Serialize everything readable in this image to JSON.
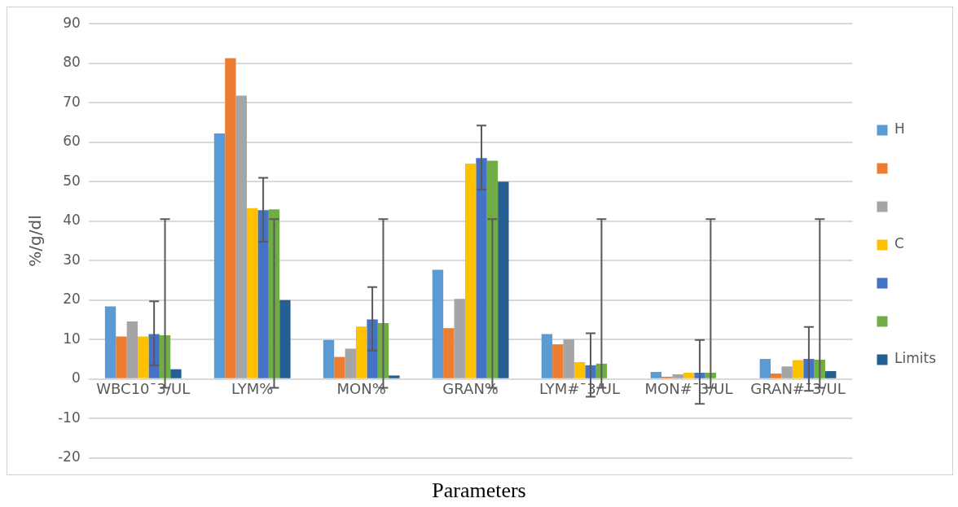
{
  "chart_data": {
    "type": "bar",
    "xlabel": "Parameters",
    "ylabel": "%/g/dl",
    "categories": [
      "WBC10¯3/UL",
      "LYM%",
      "MON%",
      "GRAN%",
      "LYM#¯3/UL",
      "MON#¯3/UL",
      "GRAN#¯3/UL"
    ],
    "series": [
      {
        "name": "H",
        "color": "#5b9bd5",
        "values": [
          18.4,
          62.2,
          9.9,
          27.7,
          11.4,
          1.8,
          5.1
        ]
      },
      {
        "color": "#ed7d31",
        "values": [
          10.8,
          81.3,
          5.6,
          12.9,
          8.8,
          0.6,
          1.4
        ]
      },
      {
        "color": "#a5a5a5",
        "values": [
          14.6,
          71.8,
          7.7,
          20.3,
          10.1,
          1.2,
          3.2
        ]
      },
      {
        "name": "C",
        "color": "#ffc000",
        "values": [
          10.8,
          43.3,
          13.3,
          54.6,
          4.3,
          1.6,
          4.8
        ]
      },
      {
        "color": "#4472c4",
        "values": [
          11.4,
          42.8,
          15.1,
          56.0,
          3.5,
          1.6,
          5.1
        ],
        "errors": [
          [
            3.5,
            19.7
          ],
          [
            34.8,
            51
          ],
          [
            7.2,
            23.3
          ],
          [
            48,
            64.2
          ],
          [
            -4.5,
            11.6
          ],
          [
            -6.3,
            9.9
          ],
          [
            -3,
            13.2
          ]
        ]
      },
      {
        "color": "#70ad47",
        "values": [
          11.1,
          43.0,
          14.2,
          55.3,
          3.9,
          1.6,
          4.9
        ],
        "errors": [
          [
            -2.2,
            40.5
          ],
          [
            -2.2,
            40.5
          ],
          [
            -2.2,
            40.5
          ],
          [
            -2.2,
            40.5
          ],
          [
            -2.2,
            40.5
          ],
          [
            -2.2,
            40.5
          ],
          [
            -2.2,
            40.5
          ]
        ]
      },
      {
        "name": "Limits",
        "color": "#255e91",
        "values": [
          2.5,
          20,
          0.9,
          50,
          null,
          null,
          2.0
        ]
      }
    ],
    "ylim": [
      -20,
      90
    ],
    "yticks": [
      -20,
      -10,
      0,
      10,
      20,
      30,
      40,
      50,
      60,
      70,
      80,
      90
    ],
    "grid": "y",
    "legend": "right"
  }
}
